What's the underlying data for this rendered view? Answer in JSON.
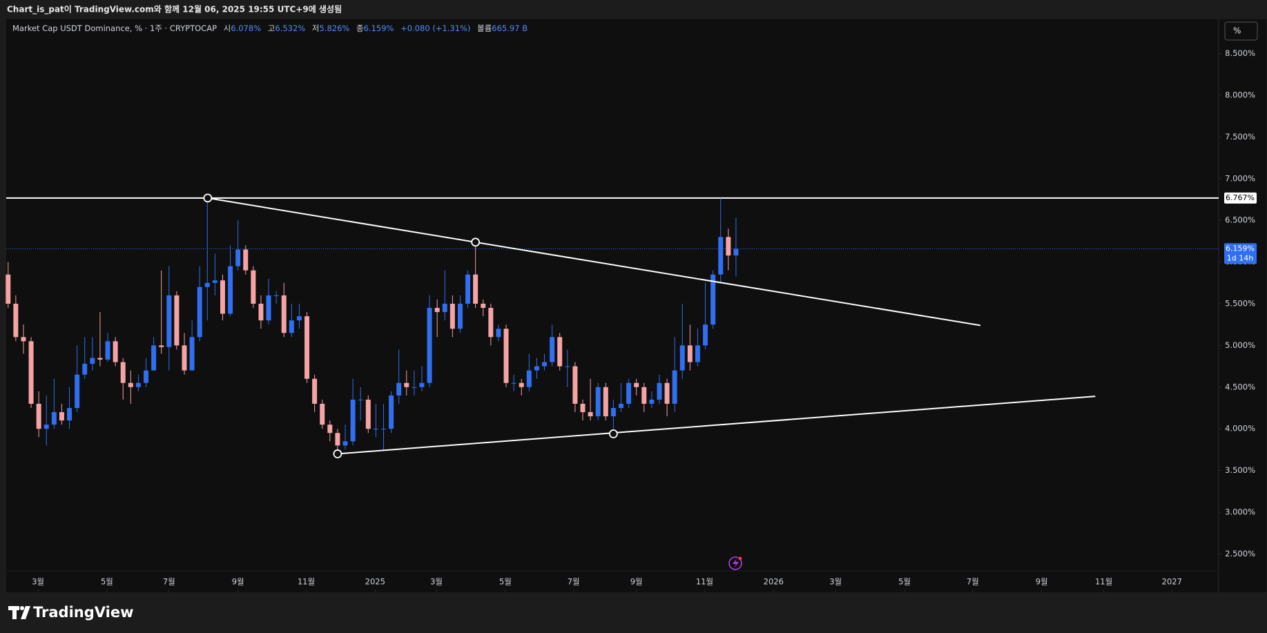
{
  "header": {
    "caption": "Chart_is_pat이 TradingView.com와 함께 12월 06, 2025 19:55 UTC+9에 생성됨"
  },
  "legend": {
    "symbol": "Market Cap USDT Dominance, % · 1주 · CRYPTOCAP",
    "fields": [
      {
        "label": "시",
        "value": "6.078%"
      },
      {
        "label": "고",
        "value": "6.532%"
      },
      {
        "label": "저",
        "value": "5.826%"
      },
      {
        "label": "종",
        "value": "6.159%"
      }
    ],
    "change": "+0.080 (+1.31%)",
    "volume": {
      "label": "볼륨",
      "value": "665.97 B"
    }
  },
  "toolbar": {
    "scale_button": "%"
  },
  "brand": "TradingView",
  "chart_data": {
    "type": "candlestick",
    "up_color": "#2f6ff0",
    "down_color": "#f5a3a3",
    "grid": false,
    "open": [
      5.85,
      5.5,
      5.1,
      5.05,
      4.3,
      4.0,
      4.05,
      4.2,
      4.1,
      4.25,
      4.65,
      4.78,
      4.85,
      4.83,
      5.05,
      4.8,
      4.55,
      4.5,
      4.55,
      4.7,
      5.0,
      4.98,
      5.6,
      5.0,
      4.7,
      5.1,
      5.7,
      5.75,
      5.78,
      5.38,
      5.95,
      6.15,
      5.9,
      5.5,
      5.3,
      5.6,
      5.6,
      5.15,
      5.3,
      5.35,
      4.6,
      4.3,
      4.05,
      3.95,
      3.8,
      3.85,
      4.35,
      4.35,
      4.0,
      4.0,
      4.0,
      4.4,
      4.55,
      4.5,
      4.5,
      4.55,
      5.45,
      5.4,
      5.5,
      5.2,
      5.5,
      5.85,
      5.5,
      5.45,
      5.1,
      5.2,
      4.55,
      4.55,
      4.5,
      4.7,
      4.75,
      4.8,
      5.1,
      4.75,
      4.75,
      4.3,
      4.2,
      4.15,
      4.5,
      4.15,
      4.25,
      4.3,
      4.55,
      4.5,
      4.3,
      4.35,
      4.55,
      4.3,
      4.7,
      5.0,
      4.8,
      5.0,
      5.25,
      5.85,
      6.3,
      6.078
    ],
    "high": [
      6.0,
      5.6,
      5.25,
      5.1,
      4.45,
      4.4,
      4.6,
      4.3,
      4.5,
      5.0,
      5.1,
      5.1,
      5.4,
      5.15,
      5.1,
      4.85,
      4.7,
      4.65,
      4.85,
      5.1,
      5.9,
      5.95,
      5.65,
      5.15,
      5.3,
      5.95,
      6.767,
      6.1,
      5.85,
      6.2,
      6.5,
      6.2,
      5.95,
      5.6,
      5.8,
      5.65,
      5.75,
      5.5,
      5.5,
      5.4,
      4.65,
      4.35,
      4.1,
      4.0,
      4.05,
      4.6,
      4.5,
      4.4,
      4.3,
      4.3,
      4.45,
      4.95,
      4.7,
      4.7,
      4.75,
      5.6,
      5.55,
      5.9,
      5.6,
      5.6,
      5.9,
      6.2,
      5.55,
      5.5,
      5.25,
      5.25,
      4.65,
      4.6,
      4.9,
      4.85,
      4.9,
      5.25,
      5.15,
      4.95,
      4.8,
      4.35,
      4.6,
      4.55,
      4.55,
      4.35,
      4.55,
      4.6,
      4.6,
      4.55,
      4.45,
      4.65,
      4.6,
      5.1,
      5.5,
      5.25,
      5.2,
      5.75,
      5.9,
      6.767,
      6.4,
      6.532
    ],
    "low": [
      5.45,
      5.05,
      4.9,
      4.25,
      3.9,
      3.8,
      4.0,
      4.05,
      4.0,
      4.2,
      4.6,
      4.7,
      4.75,
      4.8,
      4.75,
      4.35,
      4.3,
      4.45,
      4.5,
      4.7,
      4.9,
      4.7,
      4.95,
      4.65,
      4.7,
      5.05,
      5.3,
      5.6,
      5.3,
      5.35,
      5.9,
      5.85,
      5.45,
      5.2,
      5.25,
      5.5,
      5.1,
      5.1,
      5.2,
      4.55,
      4.2,
      4.0,
      3.85,
      3.7,
      3.75,
      3.8,
      4.1,
      3.95,
      3.9,
      3.75,
      3.95,
      4.3,
      4.4,
      4.4,
      4.45,
      4.5,
      5.1,
      5.3,
      5.1,
      5.15,
      5.45,
      5.45,
      5.35,
      5.0,
      5.05,
      4.5,
      4.45,
      4.4,
      4.45,
      4.6,
      4.7,
      4.75,
      4.7,
      4.5,
      4.2,
      4.1,
      4.1,
      4.1,
      4.1,
      4.0,
      4.2,
      4.25,
      4.4,
      4.2,
      4.25,
      4.3,
      4.15,
      4.2,
      4.6,
      4.7,
      4.75,
      4.95,
      5.2,
      5.75,
      5.9,
      5.826
    ],
    "close": [
      5.5,
      5.1,
      5.05,
      4.3,
      4.0,
      4.05,
      4.2,
      4.1,
      4.25,
      4.65,
      4.78,
      4.85,
      4.83,
      5.05,
      4.8,
      4.55,
      4.5,
      4.55,
      4.7,
      5.0,
      4.98,
      5.6,
      5.0,
      4.7,
      5.1,
      5.7,
      5.75,
      5.78,
      5.38,
      5.95,
      6.15,
      5.9,
      5.5,
      5.3,
      5.6,
      5.6,
      5.15,
      5.3,
      5.35,
      4.6,
      4.3,
      4.05,
      3.95,
      3.8,
      3.85,
      4.35,
      4.35,
      4.0,
      4.0,
      4.0,
      4.4,
      4.55,
      4.5,
      4.5,
      4.55,
      5.45,
      5.4,
      5.5,
      5.2,
      5.5,
      5.85,
      5.5,
      5.45,
      5.1,
      5.2,
      4.55,
      4.55,
      4.5,
      4.7,
      4.75,
      4.8,
      5.1,
      4.75,
      4.75,
      4.3,
      4.2,
      4.15,
      4.5,
      4.15,
      4.25,
      4.3,
      4.55,
      4.5,
      4.3,
      4.35,
      4.55,
      4.3,
      4.7,
      5.0,
      4.8,
      5.0,
      5.25,
      5.85,
      6.3,
      6.078,
      6.159
    ],
    "xlim": [
      -0.25,
      158.0
    ],
    "xticks": [
      {
        "value": 3.9,
        "label": "3월"
      },
      {
        "value": 12.9,
        "label": "5월"
      },
      {
        "value": 21.0,
        "label": "7월"
      },
      {
        "value": 30.0,
        "label": "9월"
      },
      {
        "value": 38.9,
        "label": "11월"
      },
      {
        "value": 47.9,
        "label": "2025"
      },
      {
        "value": 55.9,
        "label": "3월"
      },
      {
        "value": 64.9,
        "label": "5월"
      },
      {
        "value": 73.8,
        "label": "7월"
      },
      {
        "value": 82.0,
        "label": "9월"
      },
      {
        "value": 90.9,
        "label": "11월"
      },
      {
        "value": 99.9,
        "label": "2026"
      },
      {
        "value": 108.0,
        "label": "3월"
      },
      {
        "value": 117.0,
        "label": "5월"
      },
      {
        "value": 125.9,
        "label": "7월"
      },
      {
        "value": 134.9,
        "label": "9월"
      },
      {
        "value": 143.0,
        "label": "11월"
      },
      {
        "value": 151.9,
        "label": "2027"
      }
    ],
    "ylim": [
      2.04,
      8.91
    ],
    "yticks": [
      {
        "value": 2.5,
        "label": "2.500%"
      },
      {
        "value": 3.0,
        "label": "3.000%"
      },
      {
        "value": 3.5,
        "label": "3.500%"
      },
      {
        "value": 4.0,
        "label": "4.000%"
      },
      {
        "value": 4.5,
        "label": "4.500%"
      },
      {
        "value": 5.0,
        "label": "5.000%"
      },
      {
        "value": 5.5,
        "label": "5.500%"
      },
      {
        "value": 6.0,
        "label": "6.000%"
      },
      {
        "value": 6.5,
        "label": "6.500%"
      },
      {
        "value": 7.0,
        "label": "7.000%"
      },
      {
        "value": 7.5,
        "label": "7.500%"
      },
      {
        "value": 8.0,
        "label": "8.000%"
      },
      {
        "value": 8.5,
        "label": "8.500%"
      }
    ],
    "price_labels": [
      {
        "value": 6.767,
        "label": "6.767%",
        "style": "solid"
      },
      {
        "value": 6.159,
        "label": "6.159%",
        "countdown": "1d 14h",
        "style": "dotted"
      }
    ],
    "trendlines": [
      {
        "x": [
          26.05,
          126.9
        ],
        "y": [
          6.767,
          5.24
        ]
      },
      {
        "x": [
          43.0,
          141.9
        ],
        "y": [
          3.7,
          4.39
        ]
      }
    ],
    "anchors": [
      {
        "x": 26.05,
        "y": 6.767
      },
      {
        "x": 61.0,
        "y": 6.238
      },
      {
        "x": 43.0,
        "y": 3.7
      },
      {
        "x": 79.0,
        "y": 3.94
      }
    ]
  }
}
